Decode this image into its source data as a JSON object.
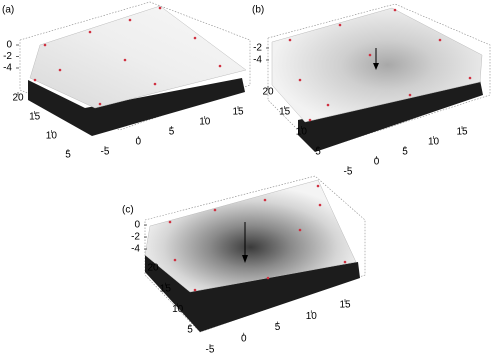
{
  "chart_data": [
    {
      "type": "surface3d",
      "label": "(a)",
      "xlim": [
        -5,
        15
      ],
      "xticks": [
        -5,
        0,
        5,
        10,
        15
      ],
      "ylim": [
        5,
        20
      ],
      "yticks": [
        20,
        15,
        10,
        5
      ],
      "zlim": [
        -4,
        0
      ],
      "zticks": [
        0,
        -2,
        -4
      ]
    },
    {
      "type": "surface3d",
      "label": "(b)",
      "xlim": [
        -5,
        15
      ],
      "xticks": [
        -5,
        0,
        5,
        10,
        15
      ],
      "ylim": [
        5,
        20
      ],
      "yticks": [
        20,
        15,
        10,
        5
      ],
      "zlim": [
        -4,
        -2
      ],
      "zticks": [
        -2,
        -4
      ]
    },
    {
      "type": "surface3d",
      "label": "(c)",
      "xlim": [
        -5,
        15
      ],
      "xticks": [
        -5,
        0,
        5,
        10,
        15
      ],
      "ylim": [
        5,
        20
      ],
      "yticks": [
        20,
        15,
        10,
        5
      ],
      "zlim": [
        -4,
        0
      ],
      "zticks": [
        0,
        -2,
        -4
      ]
    }
  ]
}
